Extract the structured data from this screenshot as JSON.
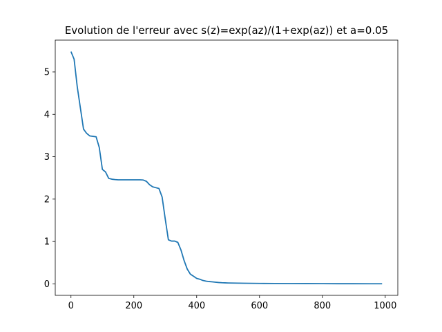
{
  "chart_data": {
    "type": "line",
    "title": "Evolution de l'erreur avec s(z)=exp(az)/(1+exp(az)) et a=0.05",
    "xlabel": "",
    "ylabel": "",
    "xlim": [
      -50,
      1040
    ],
    "ylim": [
      -0.27,
      5.75
    ],
    "grid": false,
    "x_ticks": [
      0,
      200,
      400,
      600,
      800,
      1000
    ],
    "x_tick_labels": [
      "0",
      "200",
      "400",
      "600",
      "800",
      "1000"
    ],
    "y_ticks": [
      0,
      1,
      2,
      3,
      4,
      5
    ],
    "y_tick_labels": [
      "0",
      "1",
      "2",
      "3",
      "4",
      "5"
    ],
    "series": [
      {
        "color": "#1f77b4",
        "x": [
          0,
          10,
          20,
          30,
          40,
          50,
          60,
          70,
          80,
          90,
          100,
          110,
          120,
          130,
          140,
          150,
          160,
          170,
          180,
          190,
          200,
          210,
          220,
          230,
          240,
          250,
          260,
          270,
          280,
          290,
          300,
          310,
          320,
          330,
          340,
          350,
          360,
          370,
          380,
          390,
          400,
          410,
          420,
          430,
          440,
          450,
          460,
          470,
          480,
          490,
          500,
          550,
          600,
          650,
          700,
          750,
          800,
          850,
          900,
          950,
          990
        ],
        "y": [
          5.48,
          5.3,
          4.65,
          4.15,
          3.65,
          3.55,
          3.49,
          3.48,
          3.47,
          3.22,
          2.7,
          2.64,
          2.49,
          2.47,
          2.46,
          2.455,
          2.455,
          2.455,
          2.455,
          2.455,
          2.455,
          2.455,
          2.455,
          2.45,
          2.42,
          2.34,
          2.29,
          2.27,
          2.25,
          2.05,
          1.53,
          1.04,
          1.01,
          1.01,
          0.98,
          0.8,
          0.55,
          0.35,
          0.23,
          0.18,
          0.13,
          0.11,
          0.08,
          0.065,
          0.055,
          0.048,
          0.04,
          0.033,
          0.028,
          0.025,
          0.022,
          0.015,
          0.011,
          0.009,
          0.007,
          0.006,
          0.005,
          0.004,
          0.004,
          0.003,
          0.003
        ]
      }
    ]
  }
}
